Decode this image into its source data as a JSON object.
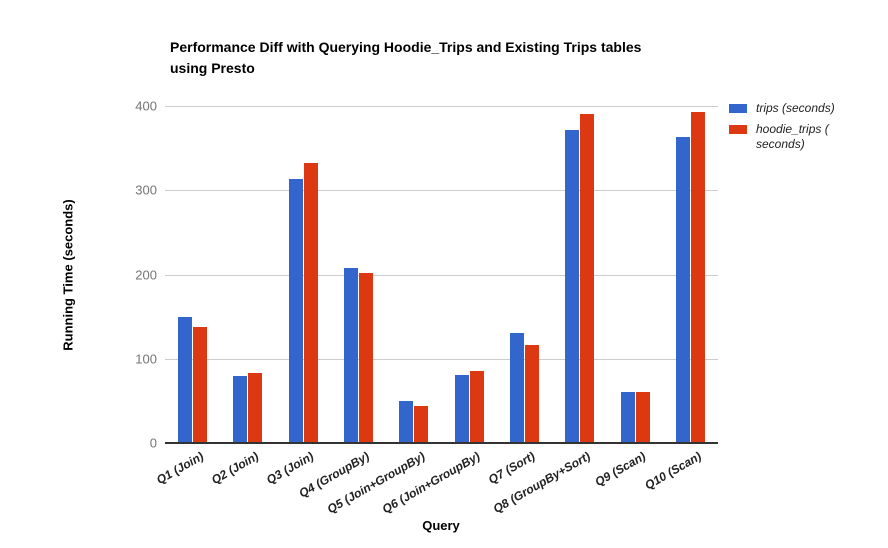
{
  "title": {
    "line1": "Performance Diff with Querying Hoodie_Trips and Existing Trips tables",
    "line2": "using Presto"
  },
  "axes": {
    "y_title": "Running Time (seconds)",
    "x_title": "Query"
  },
  "legend": {
    "items": [
      {
        "label": "trips (seconds)",
        "color": "#3366CC"
      },
      {
        "label": "hoodie_trips (\nseconds)",
        "color": "#DC3912"
      }
    ]
  },
  "chart_data": {
    "type": "bar",
    "title": "Performance Diff with Querying Hoodie_Trips and Existing Trips tables using Presto",
    "xlabel": "Query",
    "ylabel": "Running Time (seconds)",
    "ylim": [
      0,
      400
    ],
    "y_ticks": [
      0,
      100,
      200,
      300,
      400
    ],
    "grid": true,
    "legend_position": "right",
    "categories": [
      "Q1 (Join)",
      "Q2 (Join)",
      "Q3 (Join)",
      "Q4 (GroupBy)",
      "Q5 (Join+GroupBy)",
      "Q6 (Join+GroupBy)",
      "Q7 (Sort)",
      "Q8 (GroupBy+Sort)",
      "Q9 (Scan)",
      "Q10 (Scan)"
    ],
    "series": [
      {
        "name": "trips (seconds)",
        "color": "#3366CC",
        "values": [
          150,
          80,
          313,
          208,
          50,
          81,
          131,
          371,
          61,
          363
        ]
      },
      {
        "name": "hoodie_trips (seconds)",
        "color": "#DC3912",
        "values": [
          138,
          83,
          332,
          202,
          44,
          85,
          116,
          390,
          60,
          393
        ]
      }
    ],
    "colors": {
      "grid": "#cccccc",
      "baseline": "#333333",
      "tick_label": "#757575",
      "series_1": "#3366CC",
      "series_2": "#DC3912"
    }
  }
}
